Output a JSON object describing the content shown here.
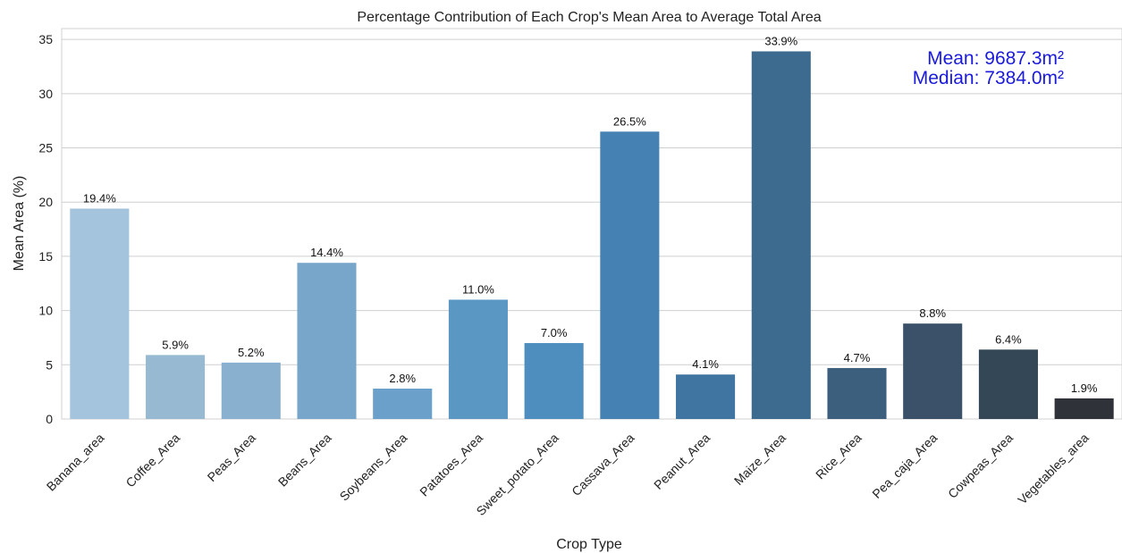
{
  "chart_data": {
    "type": "bar",
    "title": "Percentage Contribution of Each Crop's Mean Area to Average Total Area",
    "xlabel": "Crop Type",
    "ylabel": "Mean Area (%)",
    "ylim": [
      0,
      36
    ],
    "yticks": [
      0,
      5,
      10,
      15,
      20,
      25,
      30,
      35
    ],
    "grid": "horizontal",
    "categories": [
      "Banana_area",
      "Coffee_Area",
      "Peas_Area",
      "Beans_Area",
      "Soybeans_Area",
      "Patatoes_Area",
      "Sweet_potato_Area",
      "Cassava_Area",
      "Peanut_Area",
      "Maize_Area",
      "Rice_Area",
      "Pea_caja_Area",
      "Cowpeas_Area",
      "Vegetables_area"
    ],
    "values": [
      19.4,
      5.9,
      5.2,
      14.4,
      2.8,
      11.0,
      7.0,
      26.5,
      4.1,
      33.9,
      4.7,
      8.8,
      6.4,
      1.9
    ],
    "data_labels": [
      "19.4%",
      "5.9%",
      "5.2%",
      "14.4%",
      "2.8%",
      "11.0%",
      "7.0%",
      "26.5%",
      "4.1%",
      "33.9%",
      "4.7%",
      "8.8%",
      "6.4%",
      "1.9%"
    ],
    "bar_colors": [
      "#a3c4dc",
      "#97b9d2",
      "#89b1cf",
      "#78a6cb",
      "#6aa0c9",
      "#5a97c3",
      "#4e8ebe",
      "#4582b3",
      "#3f75a0",
      "#3d6b8f",
      "#3d5f7e",
      "#3a5169",
      "#344756",
      "#2f3339"
    ],
    "annotations": {
      "mean": "Mean: 9687.3m²",
      "median": "Median: 7384.0m²",
      "color": "#1a1adb"
    }
  }
}
